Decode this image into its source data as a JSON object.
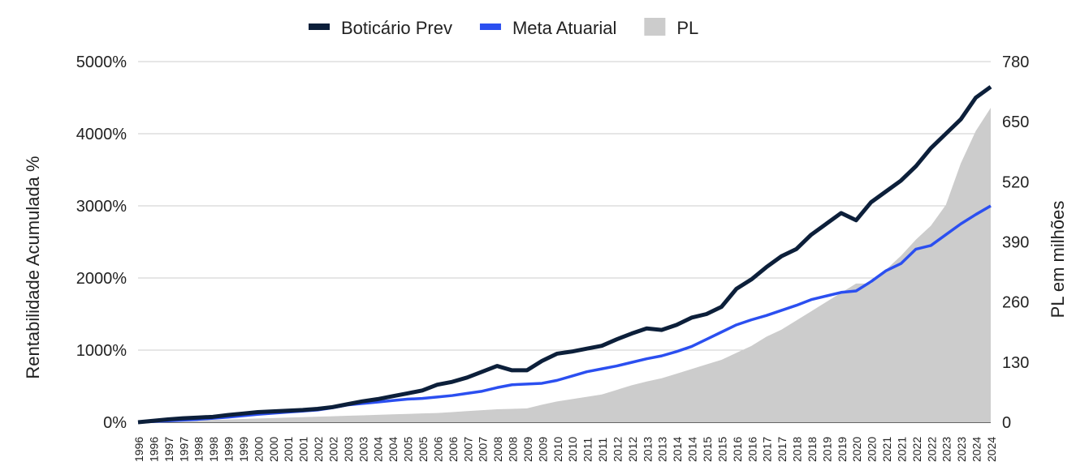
{
  "chart_data": {
    "type": "line",
    "y_label": "Rentabilidade Acumulada %",
    "y2_label": "PL em milhões",
    "legend_position": "top",
    "categories": [
      "1996",
      "1996",
      "1997",
      "1997",
      "1998",
      "1998",
      "1999",
      "1999",
      "2000",
      "2000",
      "2001",
      "2001",
      "2002",
      "2002",
      "2003",
      "2003",
      "2004",
      "2004",
      "2005",
      "2005",
      "2006",
      "2006",
      "2007",
      "2007",
      "2008",
      "2008",
      "2009",
      "2009",
      "2010",
      "2010",
      "2011",
      "2011",
      "2012",
      "2012",
      "2013",
      "2013",
      "2014",
      "2014",
      "2015",
      "2015",
      "2016",
      "2016",
      "2017",
      "2017",
      "2018",
      "2018",
      "2019",
      "2019",
      "2020",
      "2020",
      "2021",
      "2021",
      "2022",
      "2022",
      "2023",
      "2023",
      "2024",
      "2024"
    ],
    "series": [
      {
        "name": "PL",
        "type": "area",
        "axis": "y2",
        "color": "#cccccc",
        "values": [
          0,
          1,
          2,
          3,
          4,
          5,
          6,
          7,
          8,
          9,
          10,
          11,
          12,
          13,
          14,
          15,
          16,
          17,
          18,
          19,
          20,
          22,
          24,
          26,
          28,
          29,
          30,
          38,
          45,
          50,
          55,
          60,
          70,
          80,
          88,
          95,
          105,
          115,
          125,
          135,
          150,
          165,
          185,
          200,
          220,
          240,
          260,
          280,
          300,
          300,
          330,
          360,
          395,
          425,
          470,
          560,
          630,
          680
        ]
      },
      {
        "name": "Meta Atuarial",
        "axis": "y",
        "color": "#2b4ff0",
        "values": [
          0,
          10,
          20,
          30,
          40,
          55,
          70,
          90,
          110,
          125,
          140,
          155,
          170,
          200,
          240,
          260,
          280,
          300,
          320,
          330,
          350,
          370,
          400,
          430,
          480,
          520,
          530,
          540,
          580,
          640,
          700,
          740,
          780,
          830,
          880,
          920,
          980,
          1050,
          1150,
          1250,
          1350,
          1420,
          1480,
          1550,
          1620,
          1700,
          1750,
          1800,
          1820,
          1950,
          2100,
          2200,
          2400,
          2450,
          2600,
          2750,
          2880,
          3000
        ]
      },
      {
        "name": "Boticário Prev",
        "axis": "y",
        "color": "#0c1f3a",
        "values": [
          0,
          20,
          40,
          55,
          65,
          75,
          100,
          120,
          140,
          150,
          160,
          170,
          185,
          210,
          250,
          290,
          320,
          360,
          400,
          440,
          520,
          560,
          620,
          700,
          780,
          720,
          720,
          850,
          950,
          980,
          1020,
          1060,
          1150,
          1230,
          1300,
          1280,
          1350,
          1450,
          1500,
          1600,
          1850,
          1980,
          2150,
          2300,
          2400,
          2600,
          2750,
          2900,
          2800,
          3050,
          3200,
          3350,
          3550,
          3800,
          4000,
          4200,
          4500,
          4650
        ]
      }
    ],
    "ylim": [
      0,
      5000
    ],
    "yticks": [
      {
        "value": 0,
        "label": "0%"
      },
      {
        "value": 1000,
        "label": "1000%"
      },
      {
        "value": 2000,
        "label": "2000%"
      },
      {
        "value": 3000,
        "label": "3000%"
      },
      {
        "value": 4000,
        "label": "4000%"
      },
      {
        "value": 5000,
        "label": "5000%"
      }
    ],
    "y2lim": [
      0,
      780
    ],
    "y2ticks": [
      0,
      130,
      260,
      390,
      520,
      650,
      780
    ],
    "grid": true
  }
}
